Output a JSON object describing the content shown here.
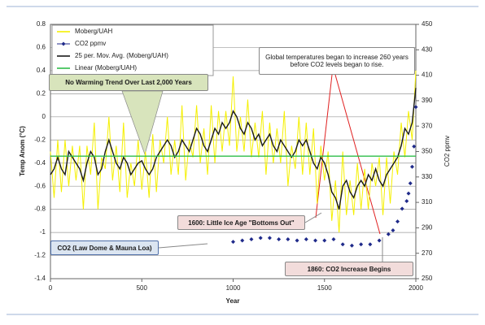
{
  "chart_data": {
    "type": "line",
    "xlabel": "Year",
    "ylabel": "Temp Anom (°C)",
    "y2label": "CO2 ppmv",
    "xlim": [
      0,
      2000
    ],
    "xticks": [
      0,
      500,
      1000,
      1500,
      2000
    ],
    "ylim": [
      -1.4,
      0.8
    ],
    "yticks": [
      0.8,
      0.6,
      0.4,
      0.2,
      0,
      -0.2,
      -0.4,
      -0.6,
      -0.8,
      -1,
      -1.2,
      -1.4
    ],
    "y2lim": [
      250,
      450
    ],
    "y2ticks": [
      450,
      430,
      410,
      390,
      370,
      350,
      330,
      310,
      290,
      270,
      250
    ],
    "grid": true,
    "legend": "upper left",
    "x": [
      0,
      20,
      40,
      60,
      80,
      100,
      120,
      140,
      160,
      180,
      200,
      220,
      240,
      260,
      280,
      300,
      320,
      340,
      360,
      380,
      400,
      420,
      440,
      460,
      480,
      500,
      520,
      540,
      560,
      580,
      600,
      620,
      640,
      660,
      680,
      700,
      720,
      740,
      760,
      780,
      800,
      820,
      840,
      860,
      880,
      900,
      920,
      940,
      960,
      980,
      1000,
      1020,
      1040,
      1060,
      1080,
      1100,
      1120,
      1140,
      1160,
      1180,
      1200,
      1220,
      1240,
      1260,
      1280,
      1300,
      1320,
      1340,
      1360,
      1380,
      1400,
      1420,
      1440,
      1460,
      1480,
      1500,
      1520,
      1540,
      1560,
      1580,
      1600,
      1620,
      1640,
      1660,
      1680,
      1700,
      1720,
      1740,
      1760,
      1780,
      1800,
      1820,
      1840,
      1860,
      1880,
      1900,
      1920,
      1940,
      1960,
      1980,
      2000
    ],
    "series": [
      {
        "name": "Moberg/UAH",
        "color": "#f5f000",
        "style": "line",
        "values": [
          -0.3,
          -0.7,
          -0.2,
          -0.65,
          -0.2,
          -0.6,
          -0.25,
          -0.55,
          -0.25,
          -0.8,
          -0.25,
          -0.5,
          -0.05,
          -0.8,
          -0.35,
          -0.45,
          0.0,
          -0.55,
          -0.25,
          -0.65,
          -0.05,
          -0.7,
          -0.4,
          -0.6,
          -0.2,
          -0.63,
          -0.3,
          -0.7,
          -0.15,
          -0.65,
          -0.2,
          -0.4,
          0.0,
          -0.5,
          -0.2,
          -0.5,
          0.1,
          -0.55,
          -0.2,
          -0.35,
          0.1,
          -0.4,
          -0.1,
          -0.5,
          0.1,
          -0.4,
          0.05,
          -0.3,
          0.05,
          -0.25,
          0.35,
          -0.3,
          0.0,
          -0.3,
          0.15,
          -0.35,
          -0.05,
          -0.35,
          0.05,
          -0.5,
          -0.05,
          -0.4,
          -0.1,
          -0.4,
          0.05,
          -0.6,
          -0.25,
          -0.45,
          0.0,
          -0.5,
          -0.05,
          -0.5,
          -0.1,
          -0.75,
          -0.25,
          -0.55,
          -0.3,
          -0.9,
          -0.55,
          -1.0,
          -0.3,
          -0.85,
          -0.55,
          -0.85,
          -0.4,
          -0.8,
          -0.45,
          -0.8,
          -0.4,
          -0.6,
          -0.35,
          -0.85,
          -0.35,
          -0.75,
          -0.3,
          -0.5,
          -0.05,
          -0.35,
          0.05,
          -0.2,
          0.4
        ]
      },
      {
        "name": "CO2 ppmv",
        "color": "#1f2a8a",
        "style": "marker",
        "axis": "y2",
        "x": [
          1000,
          1050,
          1100,
          1150,
          1200,
          1250,
          1300,
          1350,
          1400,
          1450,
          1500,
          1550,
          1600,
          1650,
          1700,
          1750,
          1800,
          1850,
          1875,
          1900,
          1925,
          1950,
          1960,
          1970,
          1980,
          1990,
          2000
        ],
        "values": [
          279,
          280,
          281,
          282,
          282,
          281,
          281,
          280,
          281,
          280,
          280,
          281,
          277,
          276,
          277,
          277,
          280,
          285,
          288,
          295,
          305,
          311,
          317,
          325,
          338,
          354,
          385
        ]
      },
      {
        "name": "25 per. Mov. Avg. (Moberg/UAH)",
        "color": "#1a1a1a",
        "style": "line",
        "values": [
          -0.5,
          -0.45,
          -0.35,
          -0.45,
          -0.5,
          -0.3,
          -0.35,
          -0.4,
          -0.45,
          -0.55,
          -0.4,
          -0.3,
          -0.35,
          -0.5,
          -0.45,
          -0.3,
          -0.2,
          -0.3,
          -0.4,
          -0.45,
          -0.35,
          -0.4,
          -0.5,
          -0.45,
          -0.4,
          -0.38,
          -0.45,
          -0.5,
          -0.45,
          -0.35,
          -0.3,
          -0.25,
          -0.2,
          -0.25,
          -0.35,
          -0.3,
          -0.2,
          -0.25,
          -0.3,
          -0.2,
          -0.1,
          -0.15,
          -0.25,
          -0.3,
          -0.2,
          -0.1,
          -0.15,
          -0.05,
          -0.1,
          -0.05,
          0.05,
          0.0,
          -0.1,
          -0.15,
          -0.05,
          -0.1,
          -0.2,
          -0.15,
          -0.25,
          -0.2,
          -0.15,
          -0.25,
          -0.3,
          -0.2,
          -0.25,
          -0.3,
          -0.35,
          -0.3,
          -0.2,
          -0.25,
          -0.2,
          -0.3,
          -0.4,
          -0.45,
          -0.35,
          -0.4,
          -0.5,
          -0.65,
          -0.7,
          -0.8,
          -0.6,
          -0.55,
          -0.65,
          -0.7,
          -0.6,
          -0.55,
          -0.6,
          -0.5,
          -0.55,
          -0.45,
          -0.55,
          -0.6,
          -0.5,
          -0.45,
          -0.4,
          -0.35,
          -0.25,
          -0.1,
          -0.15,
          -0.05,
          0.25
        ]
      },
      {
        "name": "Linear (Moberg/UAH)",
        "color": "#2ebd4a",
        "style": "line",
        "x": [
          0,
          2000
        ],
        "values": [
          -0.34,
          -0.34
        ]
      }
    ],
    "annotations": [
      {
        "text": "No Warming Trend Over Last 2,000 Years"
      },
      {
        "text": "Global temperatures began to increase 260 years before CO2 levels began to rise."
      },
      {
        "text": "1600:  Little Ice Age \"Bottoms Out\""
      },
      {
        "text": "CO2  (Law Dome & Mauna Loa)"
      },
      {
        "text": "1860:  CO2 Increase Begins"
      }
    ]
  }
}
